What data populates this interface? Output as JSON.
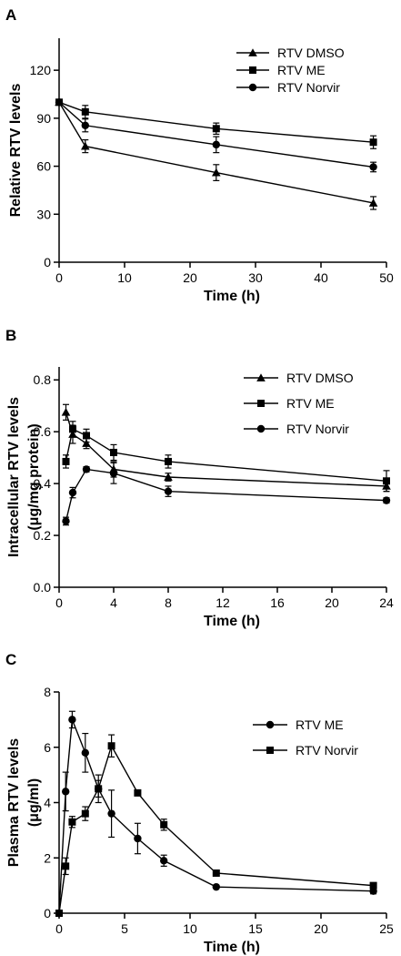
{
  "chart_data": [
    {
      "panel": "A",
      "type": "line",
      "xlabel": "Time  (h)",
      "ylabel": "Relative RTV levels",
      "xlim": [
        0,
        50
      ],
      "ylim": [
        0,
        140
      ],
      "xticks": [
        0,
        10,
        20,
        30,
        40,
        50
      ],
      "yticks": [
        0,
        30,
        60,
        90,
        120
      ],
      "legend": "top-right",
      "series": [
        {
          "name": "RTV DMSO",
          "marker": "triangle",
          "x": [
            0,
            4,
            24,
            48
          ],
          "y": [
            100,
            72.5,
            56,
            37
          ],
          "err": [
            0,
            4,
            5,
            4
          ]
        },
        {
          "name": "RTV ME",
          "marker": "square",
          "x": [
            0,
            4,
            24,
            48
          ],
          "y": [
            100,
            94,
            83.5,
            75
          ],
          "err": [
            0,
            4,
            3.5,
            4
          ]
        },
        {
          "name": "RTV Norvir",
          "marker": "circle",
          "x": [
            0,
            4,
            24,
            48
          ],
          "y": [
            100,
            85.5,
            73.5,
            59.5
          ],
          "err": [
            0,
            4,
            5,
            3
          ]
        }
      ]
    },
    {
      "panel": "B",
      "type": "line",
      "xlabel": "Time  (h)",
      "ylabel": "Intracellular RTV levels",
      "ylabel2": "(μg/mg protein)",
      "xlim": [
        0,
        24
      ],
      "ylim": [
        0,
        0.85
      ],
      "xticks": [
        0,
        4,
        8,
        12,
        16,
        20,
        24
      ],
      "yticks": [
        "0.0",
        "0.2",
        "0.4",
        "0.6",
        "0.8"
      ],
      "legend": "top-right",
      "series": [
        {
          "name": "RTV DMSO",
          "marker": "triangle",
          "x": [
            0.5,
            1,
            2,
            4,
            8,
            24
          ],
          "y": [
            0.675,
            0.59,
            0.555,
            0.455,
            0.425,
            0.39
          ],
          "err": [
            0.03,
            0.035,
            0.02,
            0.03,
            0.015,
            0.02
          ]
        },
        {
          "name": "RTV ME",
          "marker": "square",
          "x": [
            0.5,
            1,
            2,
            4,
            8,
            24
          ],
          "y": [
            0.485,
            0.61,
            0.585,
            0.52,
            0.485,
            0.41
          ],
          "err": [
            0.025,
            0.03,
            0.025,
            0.03,
            0.025,
            0.04
          ]
        },
        {
          "name": "RTV Norvir",
          "marker": "circle",
          "x": [
            0.5,
            1,
            2,
            4,
            8,
            24
          ],
          "y": [
            0.255,
            0.365,
            0.455,
            0.44,
            0.37,
            0.335
          ],
          "err": [
            0.015,
            0.02,
            0.01,
            0.04,
            0.02,
            0.01
          ]
        }
      ]
    },
    {
      "panel": "C",
      "type": "line",
      "xlabel": "Time  (h)",
      "ylabel": "Plasma RTV levels",
      "ylabel2": "(μg/ml)",
      "xlim": [
        0,
        25
      ],
      "ylim": [
        0,
        8
      ],
      "xticks": [
        0,
        5,
        10,
        15,
        20,
        25
      ],
      "yticks": [
        0,
        2,
        4,
        6,
        8
      ],
      "legend": "top-right",
      "series": [
        {
          "name": "RTV ME",
          "marker": "circle",
          "x": [
            0,
            0.5,
            1,
            2,
            3,
            4,
            6,
            8,
            12,
            24
          ],
          "y": [
            0,
            4.4,
            7.0,
            5.8,
            4.5,
            3.6,
            2.7,
            1.9,
            0.95,
            0.8
          ],
          "err": [
            0,
            0.7,
            0.3,
            0.7,
            0.5,
            0.85,
            0.55,
            0.2,
            0.05,
            0.1
          ]
        },
        {
          "name": "RTV Norvir",
          "marker": "square",
          "x": [
            0,
            0.5,
            1,
            2,
            3,
            4,
            6,
            8,
            12,
            24
          ],
          "y": [
            0,
            1.7,
            3.3,
            3.6,
            4.5,
            6.05,
            4.35,
            3.2,
            1.45,
            1.0
          ],
          "err": [
            0,
            0.3,
            0.2,
            0.25,
            0.3,
            0.4,
            0.05,
            0.2,
            0.05,
            0.05
          ]
        }
      ]
    }
  ]
}
